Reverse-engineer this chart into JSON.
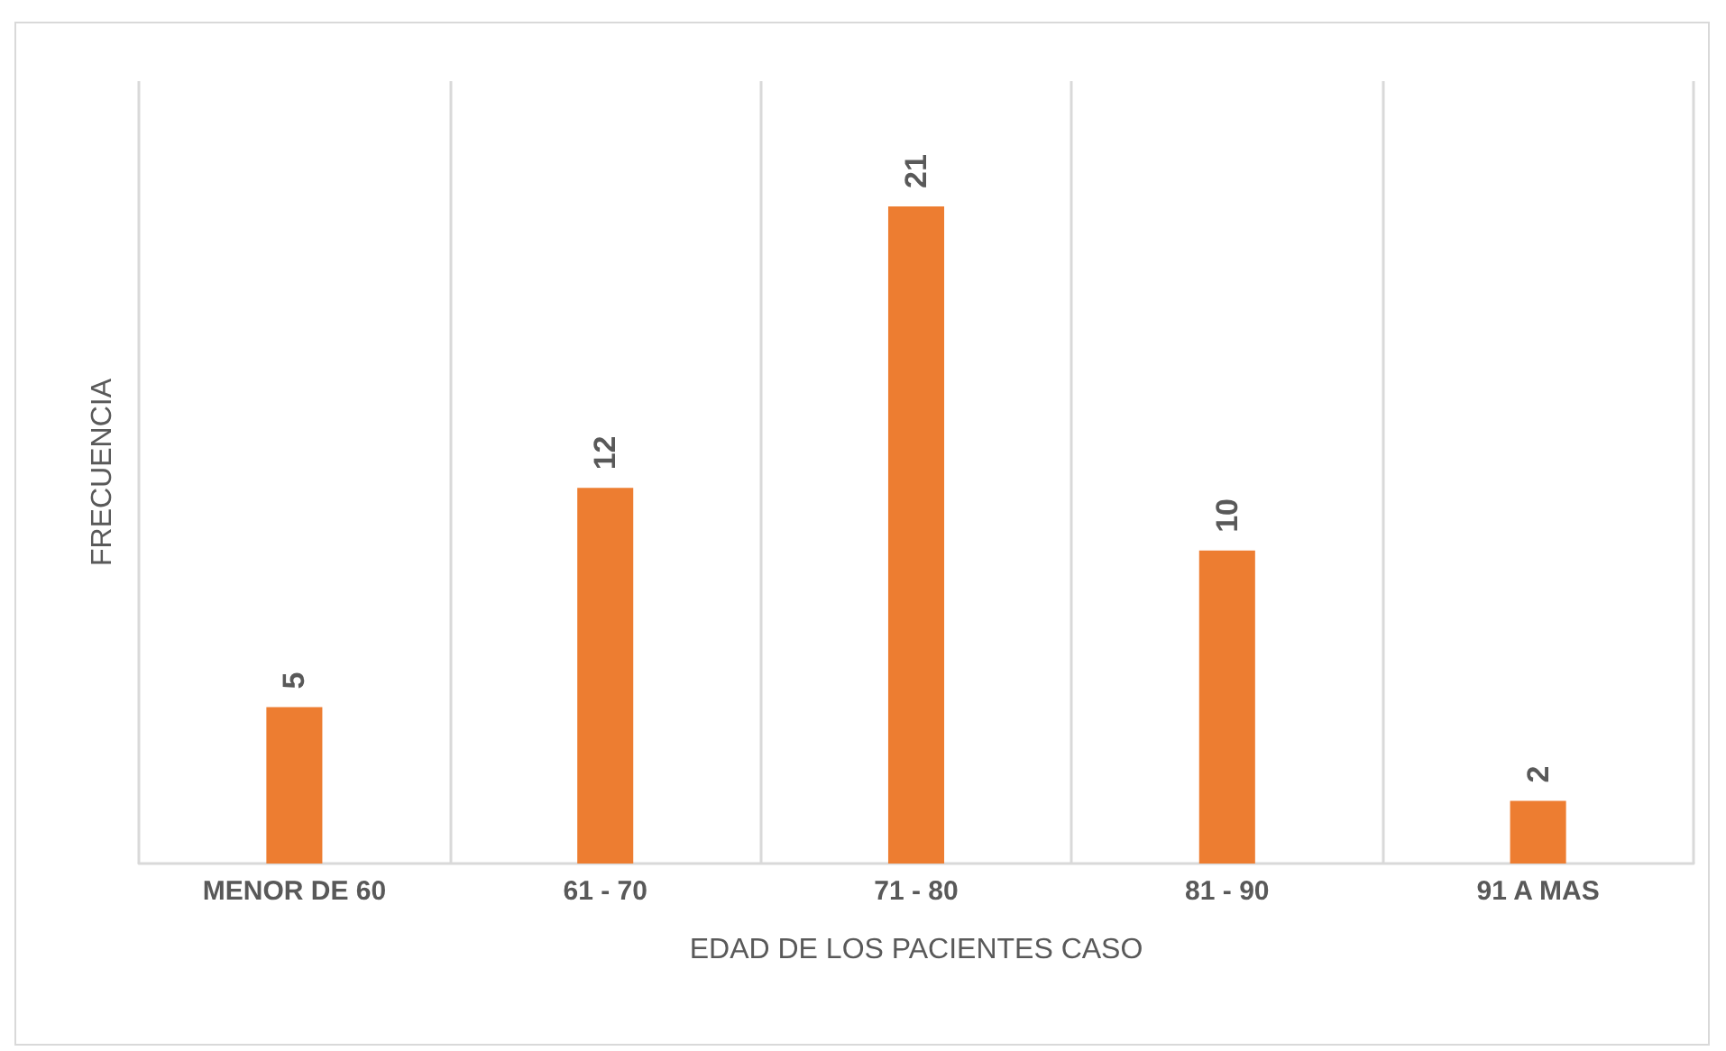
{
  "chart_data": {
    "type": "bar",
    "xlabel": "EDAD DE LOS PACIENTES CASO",
    "ylabel": "FRECUENCIA",
    "categories": [
      "MENOR DE 60",
      "61 - 70",
      "71 - 80",
      "81 - 90",
      "91 A MAS"
    ],
    "values": [
      5,
      12,
      21,
      10,
      2
    ],
    "color": "#ed7d31",
    "data_labels": true,
    "grid": "x",
    "tick_labels": "x"
  }
}
